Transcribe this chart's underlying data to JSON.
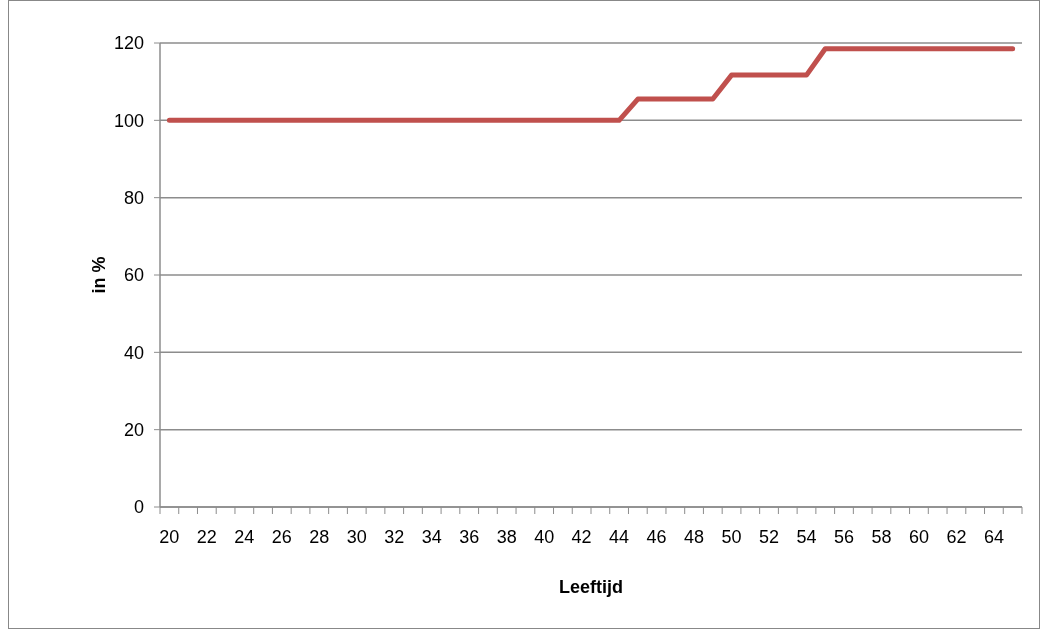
{
  "chart_data": {
    "type": "line",
    "xlabel": "Leeftijd",
    "ylabel": "in %",
    "categories": [
      "20",
      null,
      "22",
      null,
      "24",
      null,
      "26",
      null,
      "28",
      null,
      "30",
      null,
      "32",
      null,
      "34",
      null,
      "36",
      null,
      "38",
      null,
      "40",
      null,
      "42",
      null,
      "44",
      null,
      "46",
      null,
      "48",
      null,
      "50",
      null,
      "52",
      null,
      "54",
      null,
      "56",
      null,
      "58",
      null,
      "60",
      null,
      "62",
      null,
      "64",
      null
    ],
    "series": [
      {
        "color": "#c0504d",
        "values": [
          100,
          100,
          100,
          100,
          100,
          100,
          100,
          100,
          100,
          100,
          100,
          100,
          100,
          100,
          100,
          100,
          100,
          100,
          100,
          100,
          100,
          100,
          100,
          100,
          100,
          105.5,
          105.5,
          105.5,
          105.5,
          105.5,
          111.7,
          111.7,
          111.7,
          111.7,
          111.7,
          118.5,
          118.5,
          118.5,
          118.5,
          118.5,
          118.5,
          118.5,
          118.5,
          118.5,
          118.5,
          118.5
        ]
      }
    ],
    "ylim": [
      0,
      120
    ],
    "yticks": [
      0,
      20,
      40,
      60,
      80,
      100,
      120
    ],
    "grid": "y",
    "marker": "none",
    "line_style": "solid"
  }
}
